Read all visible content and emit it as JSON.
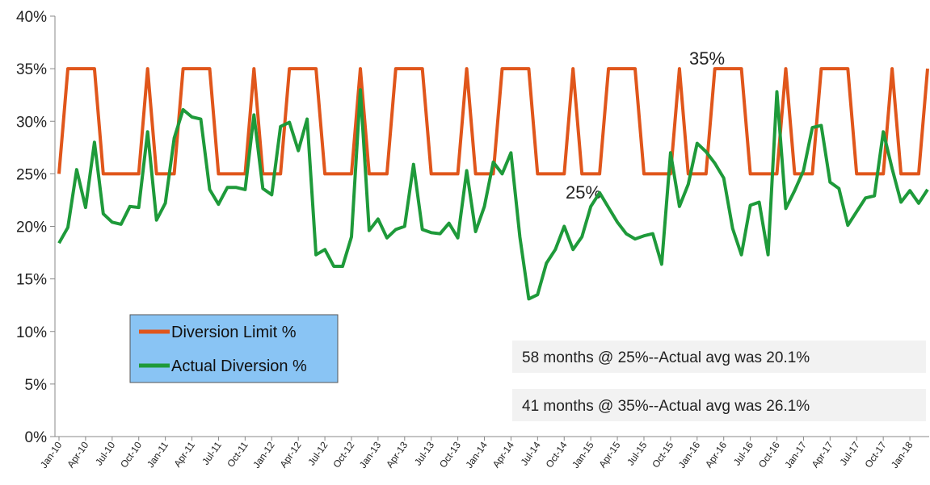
{
  "chart_data": {
    "type": "line",
    "categories": [
      "Jan-10",
      null,
      null,
      "Apr-10",
      null,
      null,
      "Jul-10",
      null,
      null,
      "Oct-10",
      null,
      null,
      "Jan-11",
      null,
      null,
      "Apr-11",
      null,
      null,
      "Jul-11",
      null,
      null,
      "Oct-11",
      null,
      null,
      "Jan-12",
      null,
      null,
      "Apr-12",
      null,
      null,
      "Jul-12",
      null,
      null,
      "Oct-12",
      null,
      null,
      "Jan-13",
      null,
      null,
      "Apr-13",
      null,
      null,
      "Jul-13",
      null,
      null,
      "Oct-13",
      null,
      null,
      "Jan-14",
      null,
      null,
      "Apr-14",
      null,
      null,
      "Jul-14",
      null,
      null,
      "Oct-14",
      null,
      null,
      "Jan-15",
      null,
      null,
      "Apr-15",
      null,
      null,
      "Jul-15",
      null,
      null,
      "Oct-15",
      null,
      null,
      "Jan-16",
      null,
      null,
      "Apr-16",
      null,
      null,
      "Jul-16",
      null,
      null,
      "Oct-16",
      null,
      null,
      "Jan-17",
      null,
      null,
      "Apr-17",
      null,
      null,
      "Jul-17",
      null,
      null,
      "Oct-17",
      null,
      null,
      "Jan-18",
      null,
      null
    ],
    "series": [
      {
        "name": "Diversion Limit %",
        "color": "#e0561b",
        "values": [
          25,
          35,
          35,
          35,
          35,
          25,
          25,
          25,
          25,
          25,
          35,
          25,
          25,
          25,
          35,
          35,
          35,
          35,
          25,
          25,
          25,
          25,
          35,
          25,
          25,
          25,
          35,
          35,
          35,
          35,
          25,
          25,
          25,
          25,
          35,
          25,
          25,
          25,
          35,
          35,
          35,
          35,
          25,
          25,
          25,
          25,
          35,
          25,
          25,
          25,
          35,
          35,
          35,
          35,
          25,
          25,
          25,
          25,
          35,
          25,
          25,
          25,
          35,
          35,
          35,
          35,
          25,
          25,
          25,
          25,
          35,
          25,
          25,
          25,
          35,
          35,
          35,
          35,
          25,
          25,
          25,
          25,
          35,
          25,
          25,
          25,
          35,
          35,
          35,
          35,
          25,
          25,
          25,
          25,
          35,
          25,
          25,
          25,
          35
        ]
      },
      {
        "name": "Actual Diversion %",
        "color": "#1e9a3a",
        "values": [
          18.4,
          19.9,
          25.4,
          21.8,
          28,
          21.2,
          20.4,
          20.2,
          21.9,
          21.8,
          29,
          20.6,
          22.2,
          28.4,
          31.1,
          30.4,
          30.2,
          23.5,
          22.1,
          23.7,
          23.7,
          23.5,
          30.6,
          23.6,
          23,
          29.5,
          29.9,
          27.2,
          30.2,
          17.3,
          17.8,
          16.2,
          16.2,
          19,
          33,
          19.6,
          20.7,
          18.9,
          19.7,
          20,
          25.9,
          19.7,
          19.4,
          19.3,
          20.3,
          18.9,
          25.3,
          19.5,
          21.9,
          26.1,
          25,
          27,
          19,
          13.1,
          13.5,
          16.5,
          17.8,
          20,
          17.8,
          19,
          21.9,
          23.2,
          21.8,
          20.4,
          19.3,
          18.8,
          19.1,
          19.3,
          16.4,
          27,
          21.9,
          24,
          27.9,
          27.1,
          26,
          24.6,
          19.8,
          17.3,
          22,
          22.3,
          17.3,
          32.8,
          21.7,
          23.4,
          25.3,
          29.4,
          29.6,
          24.2,
          23.6,
          20.1,
          21.4,
          22.7,
          22.9,
          29,
          25.5,
          22.3,
          23.4,
          22.2,
          23.5
        ]
      }
    ],
    "ylim": [
      0,
      40
    ],
    "yticks": [
      {
        "value": 0,
        "label": "0%"
      },
      {
        "value": 5,
        "label": "5%"
      },
      {
        "value": 10,
        "label": "10%"
      },
      {
        "value": 15,
        "label": "15%"
      },
      {
        "value": 20,
        "label": "20%"
      },
      {
        "value": 25,
        "label": "25%"
      },
      {
        "value": 30,
        "label": "30%"
      },
      {
        "value": 35,
        "label": "35%"
      },
      {
        "value": 40,
        "label": "40%"
      }
    ],
    "annotations": [
      "35%",
      "25%",
      "58 months @ 25%--Actual avg was 20.1%",
      "41 months @ 35%--Actual avg was 26.1%"
    ],
    "grid": false
  }
}
